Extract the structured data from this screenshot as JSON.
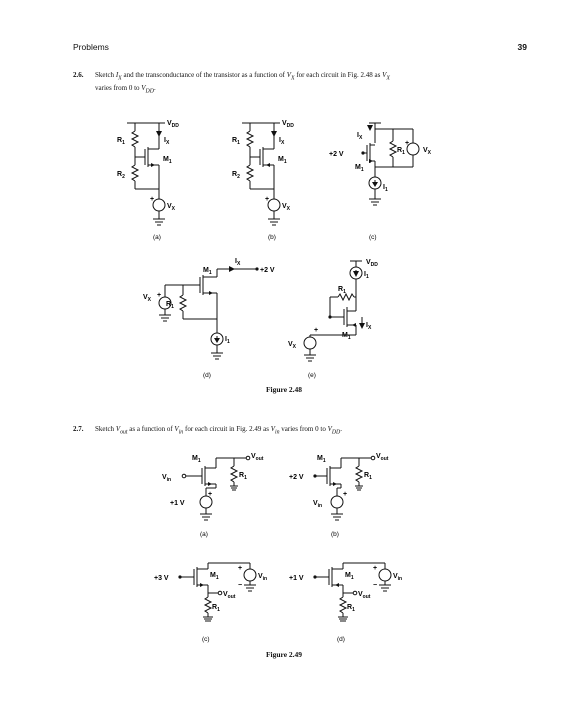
{
  "header": {
    "section": "Problems",
    "page_number": "39"
  },
  "problem_2_6": {
    "number": "2.6.",
    "text_a": "Sketch ",
    "ix": "I",
    "ix_sub": "X",
    "text_b": " and the transconductance of the transistor as a function of ",
    "vx": "V",
    "vx_sub": "X",
    "text_c": " for each circuit in Fig. 2.48 as ",
    "text_d": "varies from 0 to ",
    "vdd": "V",
    "vdd_sub": "DD",
    "text_e": "."
  },
  "figure_2_48": {
    "caption": "Figure 2.48",
    "panels": [
      "(a)",
      "(b)",
      "(c)",
      "(d)",
      "(e)"
    ],
    "labels": {
      "vdd": "V",
      "vdd_sub": "DD",
      "r1": "R",
      "r1_sub": "1",
      "r2": "R",
      "r2_sub": "2",
      "ix": "I",
      "ix_sub": "X",
      "m1": "M",
      "m1_sub": "1",
      "vx": "V",
      "vx_sub": "X",
      "i1": "I",
      "i1_sub": "1",
      "plus2v": "+2 V",
      "plus": "+",
      "minus": "−"
    }
  },
  "problem_2_7": {
    "number": "2.7.",
    "text_a": "Sketch ",
    "vout": "V",
    "vout_sub": "out",
    "text_b": " as a function of ",
    "vin": "V",
    "vin_sub": "in",
    "text_c": " for each circuit in Fig. 2.49 as ",
    "text_d": " varies from 0 to ",
    "vdd": "V",
    "vdd_sub": "DD",
    "text_e": "."
  },
  "figure_2_49": {
    "caption": "Figure 2.49",
    "panels": [
      "(a)",
      "(b)",
      "(c)",
      "(d)"
    ],
    "labels": {
      "m1": "M",
      "m1_sub": "1",
      "r1": "R",
      "r1_sub": "1",
      "vout": "V",
      "vout_sub": "out",
      "vin": "V",
      "vin_sub": "in",
      "plus1v": "+1 V",
      "plus2v": "+2 V",
      "plus3v": "+3 V",
      "plus": "+",
      "minus": "−"
    }
  }
}
